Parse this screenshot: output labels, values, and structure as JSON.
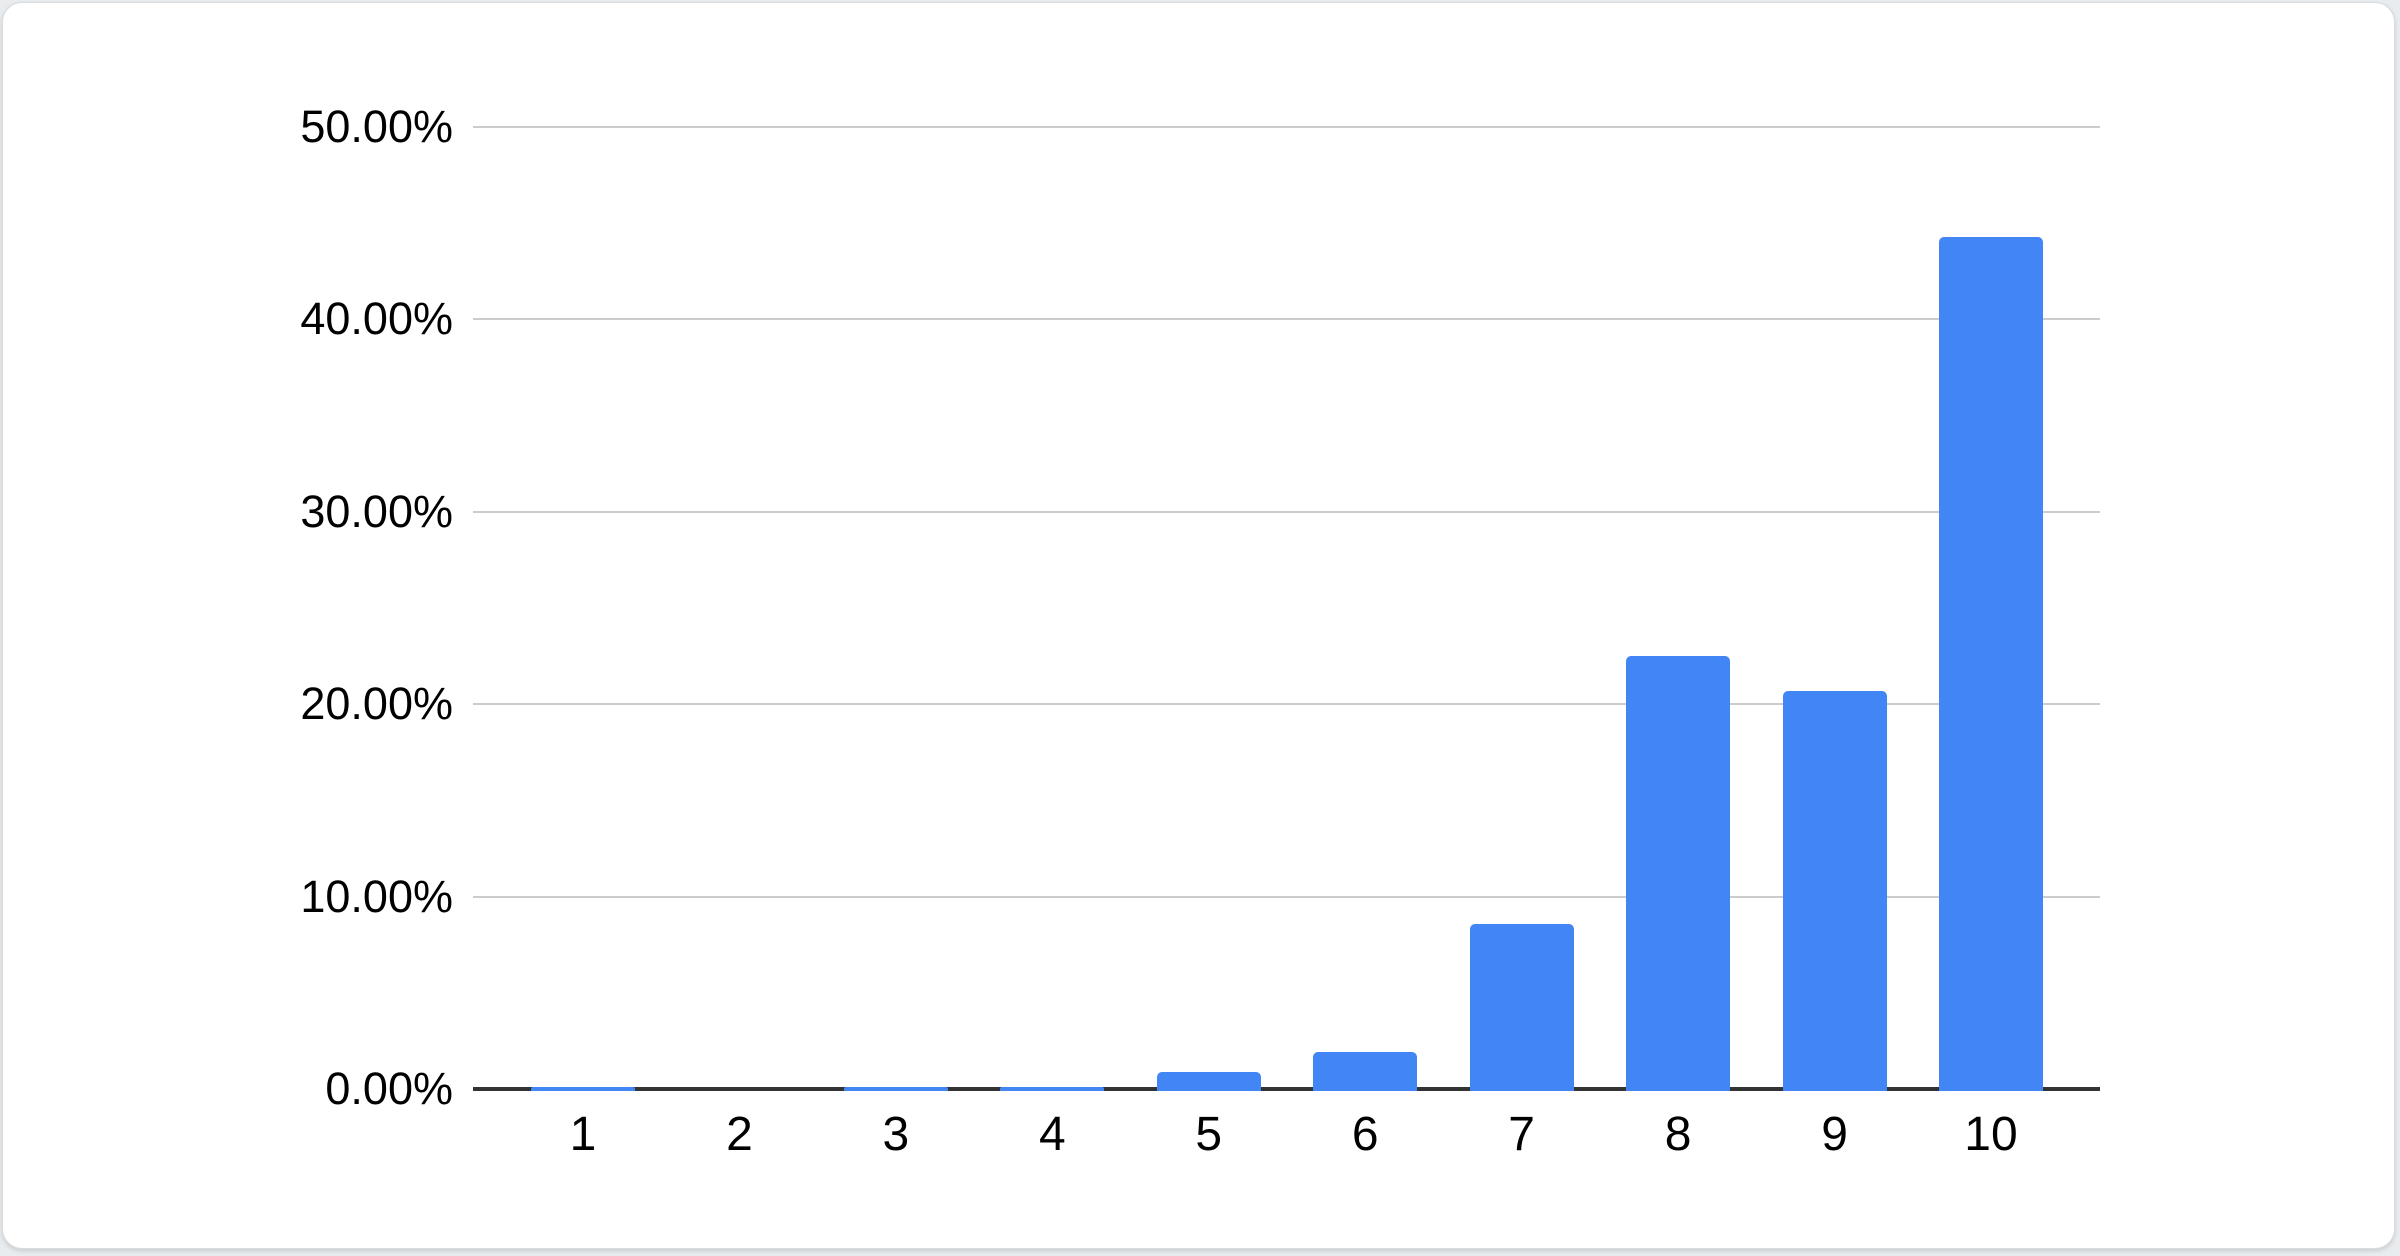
{
  "chart_data": {
    "type": "bar",
    "categories": [
      "1",
      "2",
      "3",
      "4",
      "5",
      "6",
      "7",
      "8",
      "9",
      "10"
    ],
    "values": [
      0.1,
      0,
      0.1,
      0.1,
      0.9,
      1.9,
      8.6,
      22.5,
      20.7,
      44.3
    ],
    "series_name": "",
    "y_axis": {
      "tick_labels": [
        "50.00%",
        "40.00%",
        "30.00%",
        "20.00%",
        "10.00%",
        "0.00%"
      ],
      "tick_values": [
        50,
        40,
        30,
        20,
        10,
        0
      ],
      "min": 0,
      "max": 50,
      "format": "percent"
    },
    "grid": true,
    "legend": "none",
    "colors": {
      "bar": "#4285F4",
      "gridline": "#cccccc",
      "axis_line": "#333333",
      "label_text": "#000000",
      "card_background": "#ffffff",
      "page_background": "#e9ecee"
    }
  }
}
